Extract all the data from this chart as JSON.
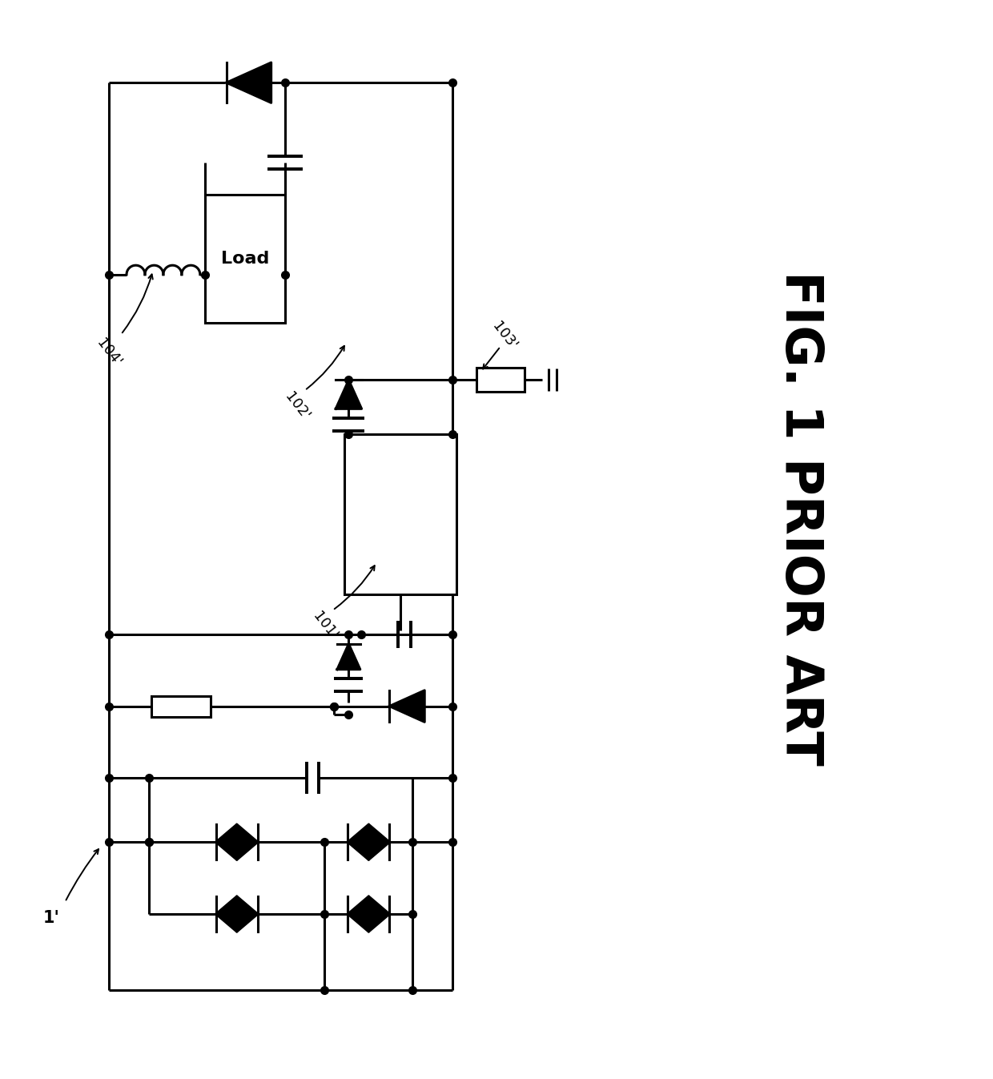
{
  "title": "FIG. 1 PRIOR ART",
  "label_1": "1'",
  "label_101": "101'",
  "label_102": "102'",
  "label_103": "103'",
  "label_104": "104'",
  "load_text": "Load",
  "line_color": "#000000",
  "bg_color": "#ffffff",
  "lw": 2.2,
  "dot_size": 7
}
